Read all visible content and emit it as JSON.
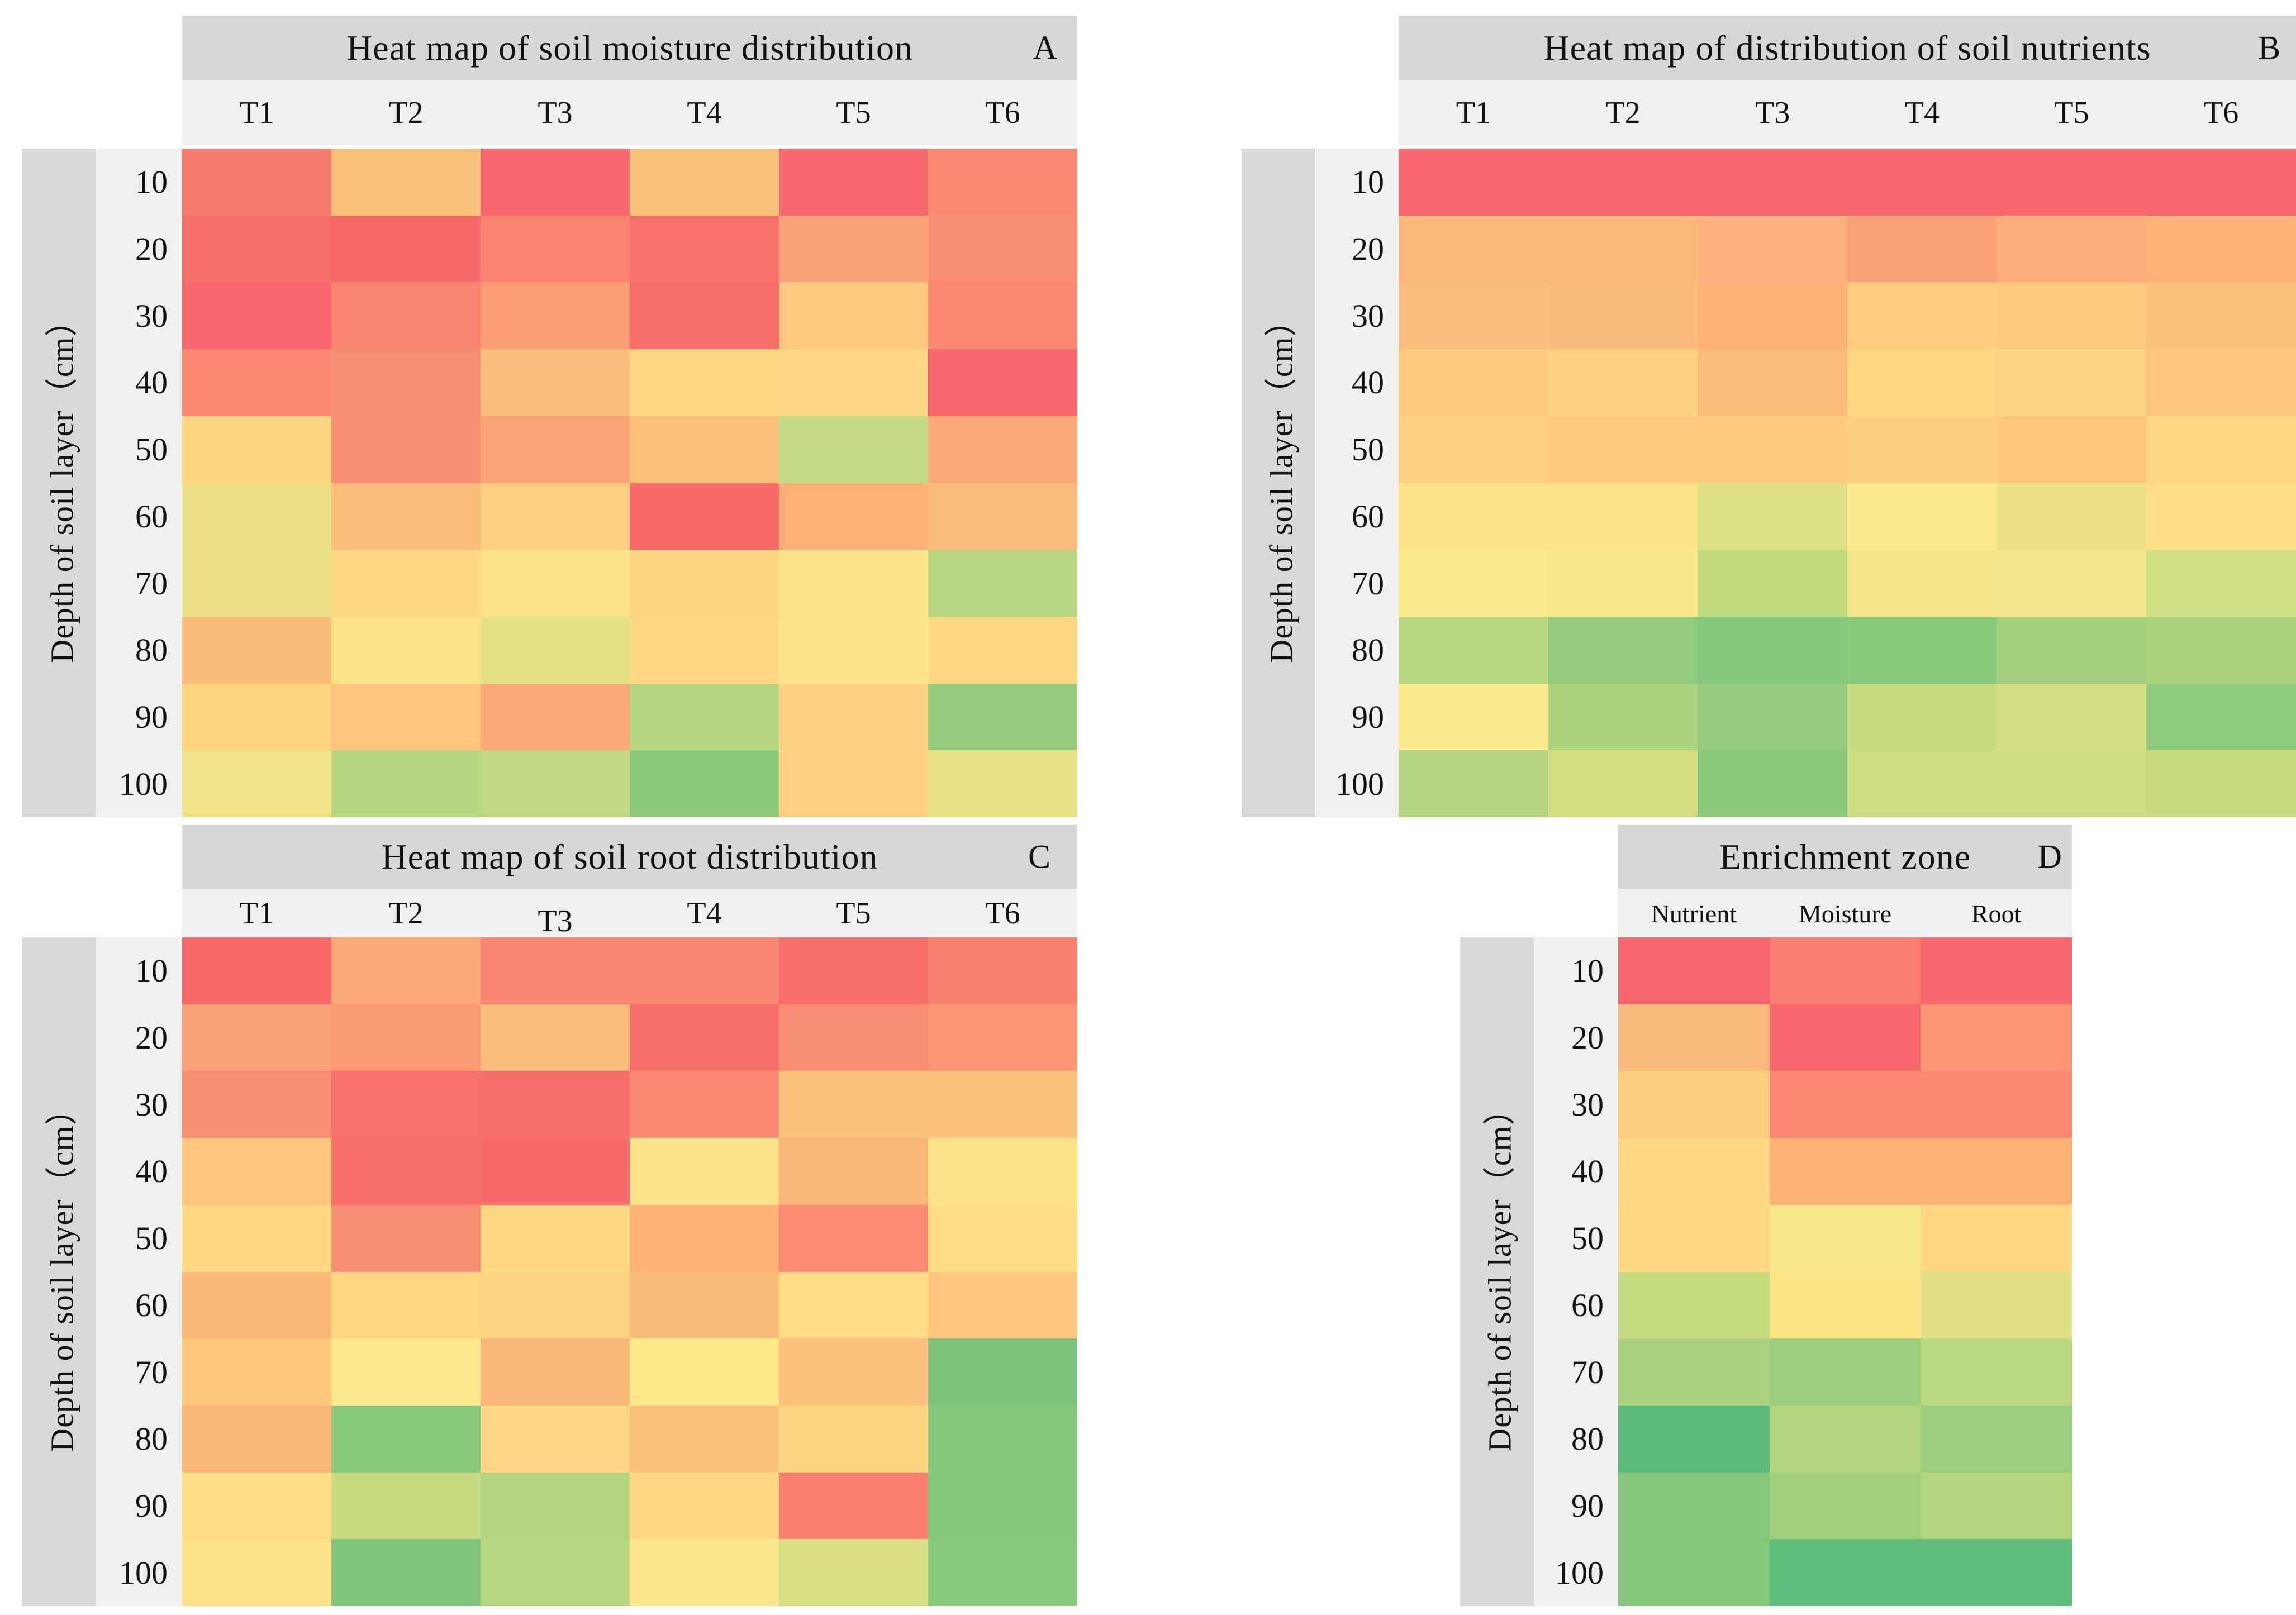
{
  "shared": {
    "y_axis_label": "Depth of soil layer（cm）",
    "row_labels": [
      "10",
      "20",
      "30",
      "40",
      "50",
      "60",
      "70",
      "80",
      "90",
      "100"
    ]
  },
  "chart_data": [
    {
      "id": "A",
      "type": "heatmap",
      "title": "Heat map of soil moisture distribution",
      "panel_letter": "A",
      "x_categories": [
        "T1",
        "T2",
        "T3",
        "T4",
        "T5",
        "T6"
      ],
      "y_categories": [
        "10",
        "20",
        "30",
        "40",
        "50",
        "60",
        "70",
        "80",
        "90",
        "100"
      ],
      "y_axis_label": "Depth of soil layer（cm）",
      "legend": "none",
      "cell_colors": [
        [
          "#f87a6f",
          "#fcc27d",
          "#f7686c",
          "#fcc37e",
          "#f7696c",
          "#f98b71"
        ],
        [
          "#f76f6d",
          "#f76b6c",
          "#f9846f",
          "#f7706d",
          "#fba377",
          "#f98e72"
        ],
        [
          "#f7686c",
          "#f98672",
          "#fa9d74",
          "#f76c6c",
          "#fdca7f",
          "#f98b70"
        ],
        [
          "#f98a70",
          "#f98d72",
          "#fcbe7c",
          "#fdd983",
          "#fdd884",
          "#f7686c"
        ],
        [
          "#fdd681",
          "#f98d72",
          "#fba577",
          "#fcc07c",
          "#c3db83",
          "#fbab77"
        ],
        [
          "#ece387",
          "#fcbc7b",
          "#fdcf80",
          "#f76b6c",
          "#fbb078",
          "#fcbc7b"
        ],
        [
          "#ece387",
          "#fdd983",
          "#fce388",
          "#fdd682",
          "#fde287",
          "#b9d780"
        ],
        [
          "#fcbb7b",
          "#fde185",
          "#e4e187",
          "#fdd782",
          "#fde286",
          "#fdda83"
        ],
        [
          "#fdd480",
          "#fcc47d",
          "#fbab76",
          "#b4d67e",
          "#fdd181",
          "#96cc7d"
        ],
        [
          "#f0e287",
          "#b5d67f",
          "#c0da82",
          "#8cc97c",
          "#fdd181",
          "#e8e287"
        ]
      ]
    },
    {
      "id": "B",
      "type": "heatmap",
      "title": "Heat map of distribution of soil nutrients",
      "panel_letter": "B",
      "x_categories": [
        "T1",
        "T2",
        "T3",
        "T4",
        "T5",
        "T6"
      ],
      "y_categories": [
        "10",
        "20",
        "30",
        "40",
        "50",
        "60",
        "70",
        "80",
        "90",
        "100"
      ],
      "y_axis_label": "Depth of soil layer（cm）",
      "legend": "none",
      "cell_colors": [
        [
          "#f7686c",
          "#f7686c",
          "#f7686c",
          "#f7686c",
          "#f7686c",
          "#f7686c"
        ],
        [
          "#fcb77b",
          "#fcb77b",
          "#fbb179",
          "#faa275",
          "#fbad78",
          "#fbb078"
        ],
        [
          "#fcbd7c",
          "#fcbb7b",
          "#fbb279",
          "#fdcc7f",
          "#fcc87e",
          "#fcc17c"
        ],
        [
          "#fdc97e",
          "#fdd381",
          "#fcbd7c",
          "#fdd883",
          "#fdd582",
          "#fcc57d"
        ],
        [
          "#fdd281",
          "#fdc97e",
          "#fdcb7f",
          "#fdcd80",
          "#fcc67d",
          "#fdd883"
        ],
        [
          "#fde386",
          "#fde285",
          "#dde085",
          "#fbe98a",
          "#ece387",
          "#fdde84"
        ],
        [
          "#fae98a",
          "#f7e889",
          "#c0da80",
          "#f5e789",
          "#f0e588",
          "#cfdd83"
        ],
        [
          "#b9d77f",
          "#93cb7d",
          "#85c77c",
          "#8bc97c",
          "#a2d07d",
          "#aad37e"
        ],
        [
          "#fae88a",
          "#abd37e",
          "#95cc7d",
          "#c8dc82",
          "#d4de84",
          "#8fca7c"
        ],
        [
          "#b1d57e",
          "#d6de84",
          "#8cc97c",
          "#cddd83",
          "#cbdc82",
          "#c9dc82"
        ]
      ]
    },
    {
      "id": "C",
      "type": "heatmap",
      "title": "Heat map of soil root distribution",
      "panel_letter": "C",
      "x_categories": [
        "T1",
        "T2",
        "T3",
        "T4",
        "T5",
        "T6"
      ],
      "y_categories": [
        "10",
        "20",
        "30",
        "40",
        "50",
        "60",
        "70",
        "80",
        "90",
        "100"
      ],
      "y_axis_label": "Depth of soil layer（cm）",
      "legend": "none",
      "cell_colors": [
        [
          "#f76b6c",
          "#fbab77",
          "#f98670",
          "#f98670",
          "#f76d6c",
          "#f9816f"
        ],
        [
          "#faa075",
          "#fa9a73",
          "#fcbd7c",
          "#f76c6c",
          "#f98d72",
          "#fa9673"
        ],
        [
          "#f98d71",
          "#f7706d",
          "#f76e6d",
          "#f98a71",
          "#fcc27d",
          "#fcc27d"
        ],
        [
          "#fcc47d",
          "#f76e6d",
          "#f76b6c",
          "#fde287",
          "#fbb57a",
          "#fde186"
        ],
        [
          "#fdda83",
          "#f98e72",
          "#fdd982",
          "#fbb279",
          "#f98c72",
          "#fdde85"
        ],
        [
          "#fbb67a",
          "#fdd782",
          "#fdd481",
          "#fbbc7b",
          "#fddc84",
          "#fcc67e"
        ],
        [
          "#fcc67d",
          "#fde78a",
          "#fbb67a",
          "#fde888",
          "#fcc17c",
          "#7cc47e"
        ],
        [
          "#fbb77a",
          "#8bc97d",
          "#fdd783",
          "#fcc37d",
          "#fdd682",
          "#84c77d"
        ],
        [
          "#fddc84",
          "#c8dc84",
          "#b5d67f",
          "#fdd983",
          "#f9806f",
          "#84c67c"
        ],
        [
          "#fde186",
          "#7dc47c",
          "#b8d780",
          "#fde68a",
          "#d8df85",
          "#87c87d"
        ]
      ]
    },
    {
      "id": "D",
      "type": "heatmap",
      "title": "Enrichment zone",
      "panel_letter": "D",
      "x_categories": [
        "Nutrient",
        "Moisture",
        "Root"
      ],
      "y_categories": [
        "10",
        "20",
        "30",
        "40",
        "50",
        "60",
        "70",
        "80",
        "90",
        "100"
      ],
      "y_axis_label": "Depth of soil layer（cm）",
      "legend": "none",
      "cell_colors": [
        [
          "#f7676c",
          "#f97d70",
          "#f7696c"
        ],
        [
          "#fcbb7c",
          "#f7686c",
          "#fa9473"
        ],
        [
          "#fdcd7f",
          "#f98a71",
          "#f98a71"
        ],
        [
          "#fdda83",
          "#fbb279",
          "#fbb279"
        ],
        [
          "#fdda82",
          "#f6e789",
          "#fdd981"
        ],
        [
          "#c5db82",
          "#fde283",
          "#e0e186"
        ],
        [
          "#a8d27d",
          "#9ccf7d",
          "#bcd880"
        ],
        [
          "#5cba7a",
          "#b4d67f",
          "#9bce7d"
        ],
        [
          "#84c67c",
          "#a3d17d",
          "#b2d57e"
        ],
        [
          "#84c67c",
          "#5fbc7a",
          "#5fbc7a"
        ]
      ]
    }
  ]
}
